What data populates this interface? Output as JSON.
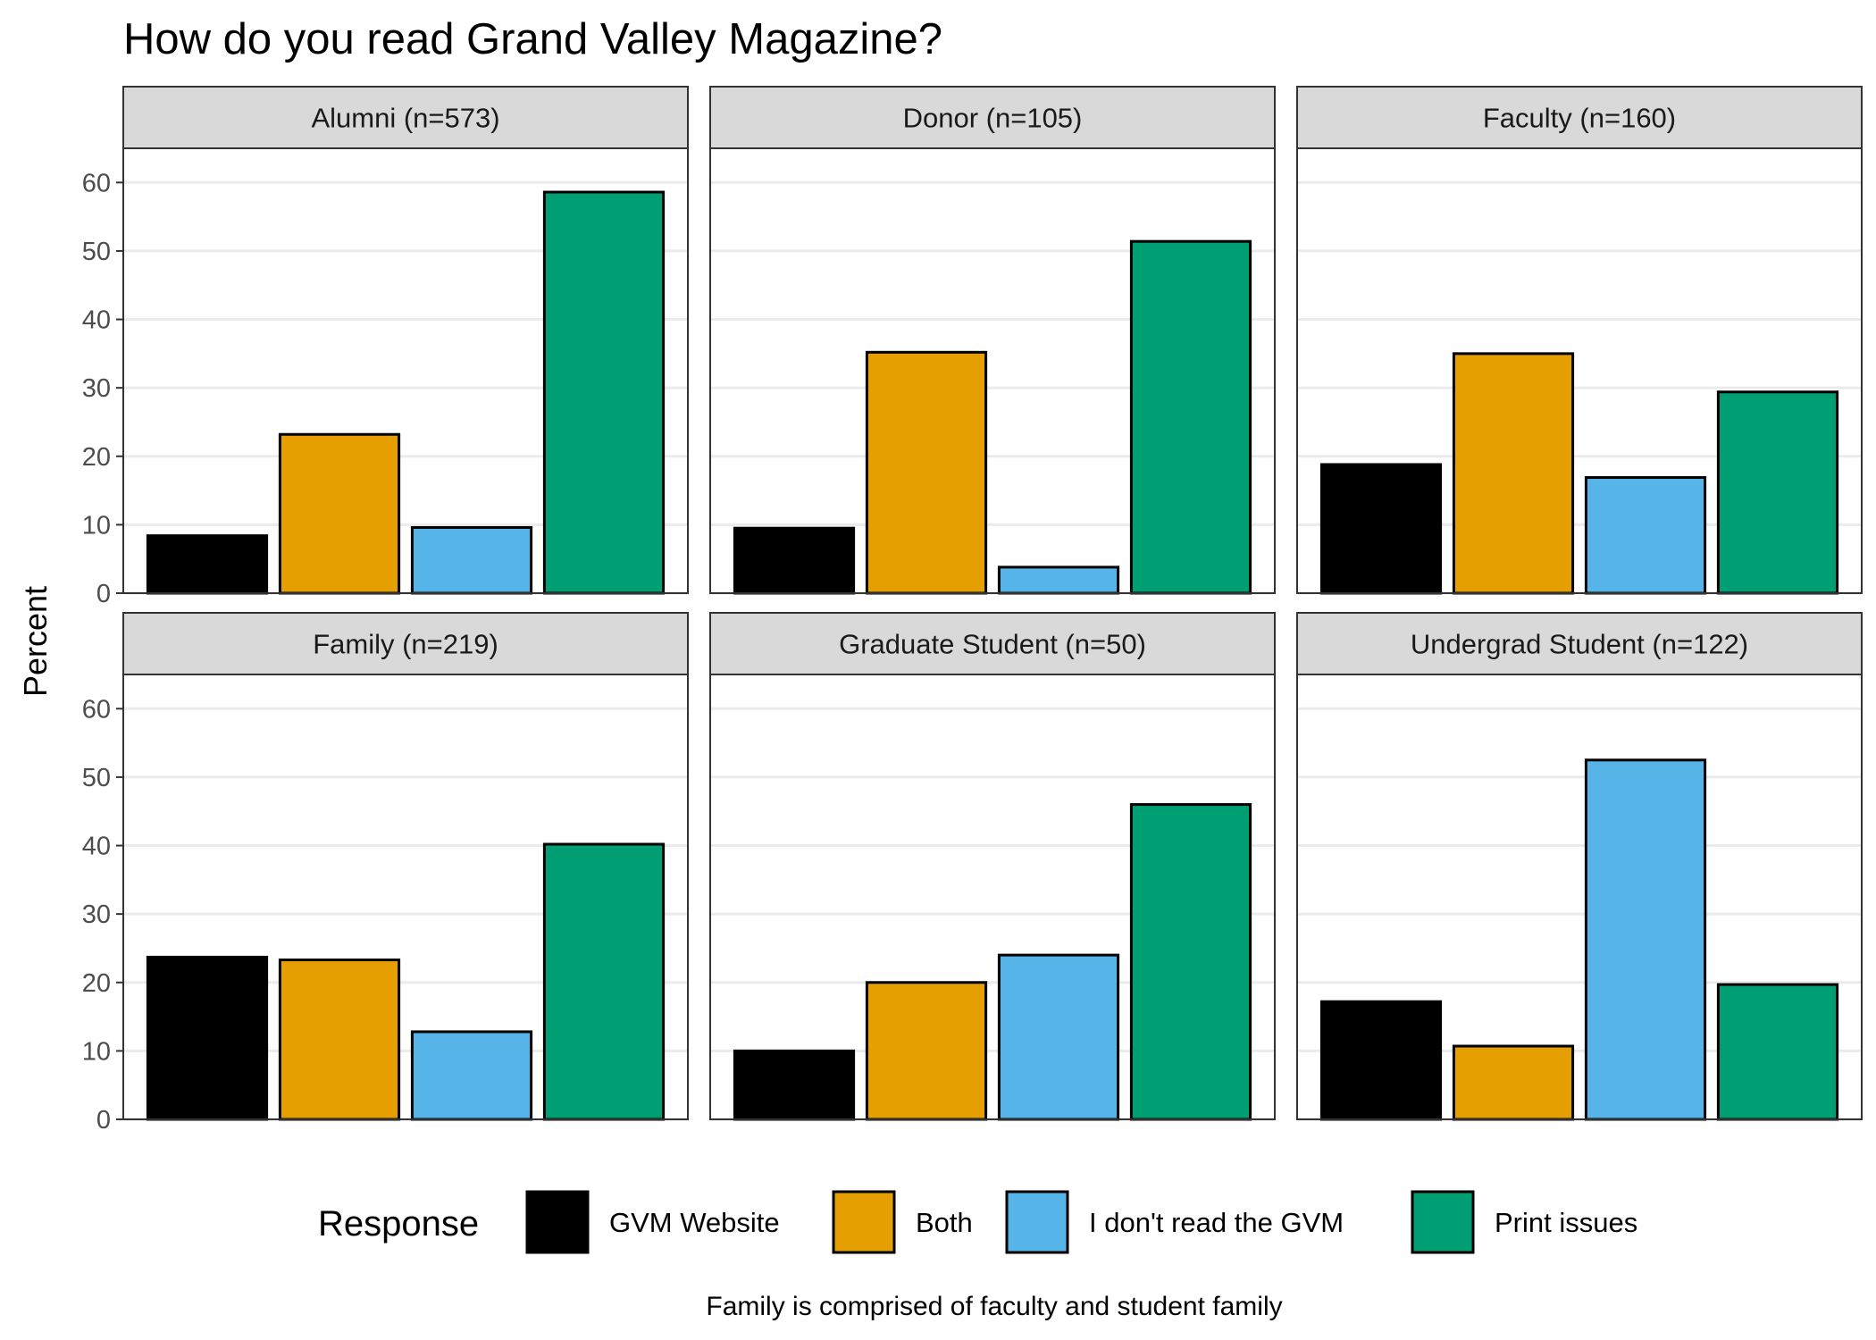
{
  "chart_data": {
    "type": "bar",
    "title": "How do you read Grand Valley Magazine?",
    "ylabel": "Percent",
    "xlabel": "",
    "ylim": [
      0,
      65
    ],
    "yticks": [
      0,
      10,
      20,
      30,
      40,
      50,
      60
    ],
    "grid": true,
    "legend": {
      "title": "Response",
      "placement": "bottom",
      "entries": [
        {
          "label": "GVM Website",
          "color": "#000000"
        },
        {
          "label": "Both",
          "color": "#E69F00"
        },
        {
          "label": "I don't read the GVM",
          "color": "#56B4E9"
        },
        {
          "label": "Print issues",
          "color": "#009E73"
        }
      ]
    },
    "caption": "Family is comprised of faculty and student family",
    "panels": [
      {
        "label": "Alumni (n=573)",
        "values": [
          8.4,
          23.2,
          9.6,
          58.6
        ]
      },
      {
        "label": "Donor (n=105)",
        "values": [
          9.5,
          35.2,
          3.8,
          51.4
        ]
      },
      {
        "label": "Faculty (n=160)",
        "values": [
          18.8,
          35.0,
          16.9,
          29.4
        ]
      },
      {
        "label": "Family (n=219)",
        "values": [
          23.7,
          23.3,
          12.8,
          40.2
        ]
      },
      {
        "label": "Graduate Student (n=50)",
        "values": [
          10.0,
          20.0,
          24.0,
          46.0
        ]
      },
      {
        "label": "Undergrad Student (n=122)",
        "values": [
          17.2,
          10.7,
          52.5,
          19.7
        ]
      }
    ]
  }
}
